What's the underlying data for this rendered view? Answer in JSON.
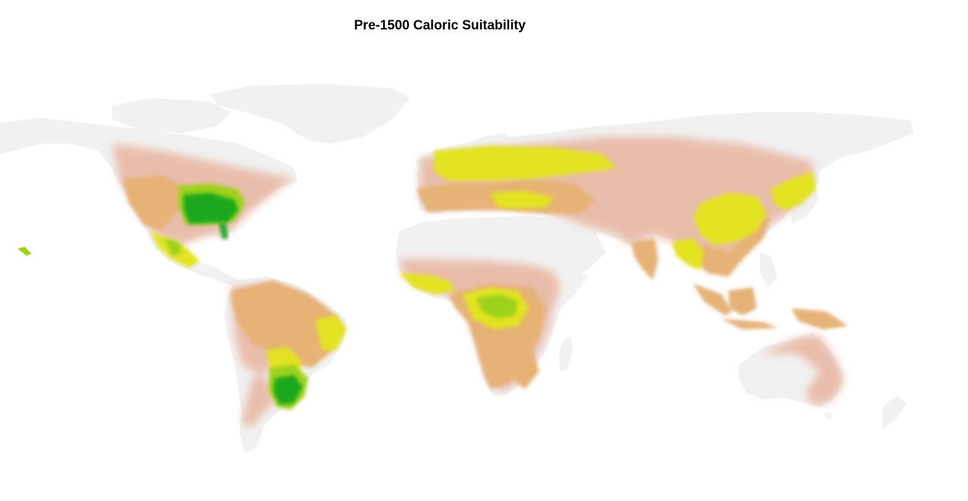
{
  "title": "Pre-1500 Caloric Suitability",
  "colors": {
    "background": "#ffffff",
    "no_data": "#f1f1f1",
    "low": "#e9b8a4",
    "low_mid": "#e6b276",
    "mid": "#e0b94a",
    "mid_high": "#e3e322",
    "high": "#9ed21a",
    "highest": "#1fa81a"
  }
}
